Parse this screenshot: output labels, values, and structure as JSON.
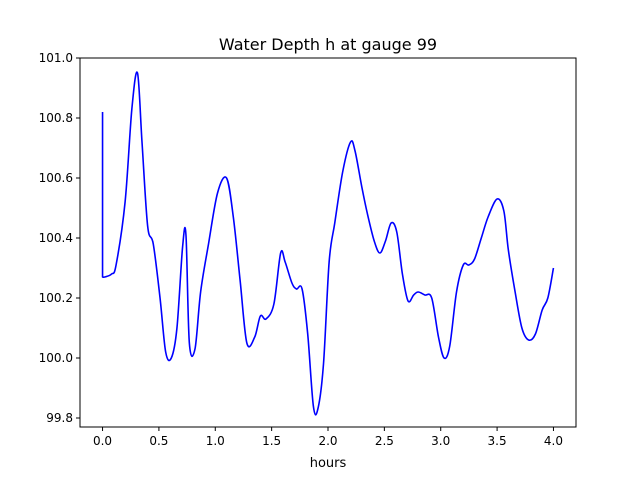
{
  "chart_data": {
    "type": "line",
    "title": "Water Depth h at gauge 99",
    "xlabel": "hours",
    "ylabel": "",
    "xlim": [
      -0.2,
      4.2
    ],
    "ylim": [
      99.77,
      101.0
    ],
    "xticks": [
      0.0,
      0.5,
      1.0,
      1.5,
      2.0,
      2.5,
      3.0,
      3.5,
      4.0
    ],
    "xtick_labels": [
      "0.0",
      "0.5",
      "1.0",
      "1.5",
      "2.0",
      "2.5",
      "3.0",
      "3.5",
      "4.0"
    ],
    "yticks": [
      99.8,
      100.0,
      100.2,
      100.4,
      100.6,
      100.8,
      101.0
    ],
    "ytick_labels": [
      "99.8",
      "100.0",
      "100.2",
      "100.4",
      "100.6",
      "100.8",
      "101.0"
    ],
    "grid": false,
    "legend": "none",
    "series": [
      {
        "color": "#0000ff",
        "x": [
          0.0,
          0.0,
          0.02,
          0.08,
          0.12,
          0.2,
          0.26,
          0.31,
          0.35,
          0.4,
          0.45,
          0.51,
          0.56,
          0.61,
          0.66,
          0.71,
          0.74,
          0.77,
          0.82,
          0.87,
          0.94,
          1.02,
          1.1,
          1.16,
          1.22,
          1.28,
          1.35,
          1.4,
          1.45,
          1.52,
          1.58,
          1.62,
          1.68,
          1.72,
          1.77,
          1.82,
          1.87,
          1.91,
          1.96,
          2.01,
          2.06,
          2.13,
          2.2,
          2.24,
          2.3,
          2.35,
          2.41,
          2.46,
          2.51,
          2.56,
          2.61,
          2.66,
          2.71,
          2.76,
          2.8,
          2.86,
          2.92,
          2.98,
          3.03,
          3.08,
          3.14,
          3.2,
          3.25,
          3.3,
          3.36,
          3.42,
          3.5,
          3.56,
          3.6,
          3.66,
          3.72,
          3.78,
          3.84,
          3.9,
          3.95,
          4.0
        ],
        "y": [
          100.82,
          100.27,
          100.27,
          100.28,
          100.31,
          100.52,
          100.83,
          100.95,
          100.72,
          100.44,
          100.38,
          100.2,
          100.02,
          100.0,
          100.1,
          100.37,
          100.41,
          100.05,
          100.03,
          100.22,
          100.38,
          100.55,
          100.6,
          100.47,
          100.26,
          100.05,
          100.07,
          100.14,
          100.13,
          100.18,
          100.35,
          100.32,
          100.25,
          100.23,
          100.23,
          100.08,
          99.84,
          99.83,
          99.98,
          100.32,
          100.45,
          100.62,
          100.72,
          100.69,
          100.57,
          100.48,
          100.39,
          100.35,
          100.39,
          100.45,
          100.42,
          100.28,
          100.19,
          100.21,
          100.22,
          100.21,
          100.2,
          100.07,
          100.0,
          100.04,
          100.22,
          100.31,
          100.31,
          100.33,
          100.4,
          100.47,
          100.53,
          100.49,
          100.36,
          100.22,
          100.1,
          100.06,
          100.08,
          100.16,
          100.2,
          100.3
        ]
      }
    ]
  }
}
